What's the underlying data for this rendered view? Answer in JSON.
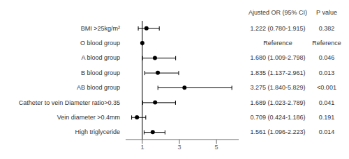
{
  "chart_data": {
    "type": "forest",
    "categories": [
      "BMI >25kg/m²",
      "O blood group",
      "A blood group",
      "B blood group",
      "AB blood group",
      "Catheter to vein Diameter ratio>0.35",
      "Vein diameter >0.4mm",
      "High triglyceride"
    ],
    "values": [
      1.222,
      1.0,
      1.68,
      1.835,
      3.275,
      1.689,
      0.709,
      1.561
    ],
    "ci_low": [
      0.78,
      1.0,
      1.009,
      1.137,
      1.84,
      1.023,
      0.424,
      1.096
    ],
    "ci_high": [
      1.915,
      1.0,
      2.798,
      2.961,
      5.829,
      2.789,
      1.186,
      2.223
    ],
    "columns": [
      {
        "title": "Ajusted OR (95% CI)",
        "labels": [
          "1.222 (0.780-1.915)",
          "Reference",
          "1.680 (1.009-2.798)",
          "1.835 (1.137-2.961)",
          "3.275 (1.840-5.829)",
          "1.689 (1.023-2.789)",
          "0.709 (0.424-1.186)",
          "1.561 (1.096-2.223)"
        ]
      },
      {
        "title": "P value",
        "labels": [
          "0.382",
          "Reference",
          "0.046",
          "0.013",
          "<0.001",
          "0.041",
          "0.191",
          "0.014"
        ]
      }
    ],
    "vline": 1.0,
    "xlim": [
      0.1,
      6.2
    ],
    "xticks": [
      1,
      3,
      5
    ],
    "grid": false
  }
}
